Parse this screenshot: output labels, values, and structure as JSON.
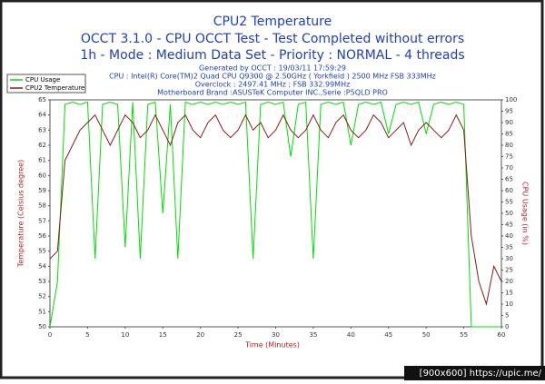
{
  "chart_data": {
    "type": "line",
    "title": "CPU2 Temperature",
    "subtitles": [
      "OCCT 3.1.0 - CPU OCCT Test - Test Completed without errors",
      "1h - Mode : Medium Data Set - Priority : NORMAL - 4 threads"
    ],
    "annotations": [
      "Generated by OCCT : 19/03/11 17:59:29",
      "CPU : Intel(R) Core(TM)2 Quad CPU Q9300 @ 2.50GHz ( Yorkfield ) 2500 MHz FSB 333MHz",
      "Overclock : 2497.41 MHz ; FSB 332.99MHz",
      "Motherboard Brand :ASUSTeK Computer INC.,Serie :P5QLD PRO"
    ],
    "watermark": "[900x600] https://upic.me/",
    "xlabel": "Time (Minutes)",
    "ylabel": "Temperature (Celsius degree)",
    "y2label": "CPU Usage (in %)",
    "xlim": [
      0,
      60
    ],
    "xticks": [
      0,
      5,
      10,
      15,
      20,
      25,
      30,
      35,
      40,
      45,
      50,
      55,
      60
    ],
    "ylim": [
      50,
      65
    ],
    "yticks": [
      50,
      51,
      52,
      53,
      54,
      55,
      56,
      57,
      58,
      59,
      60,
      61,
      62,
      63,
      64,
      65
    ],
    "y2lim": [
      0,
      100
    ],
    "y2ticks": [
      0,
      5,
      10,
      15,
      20,
      25,
      30,
      35,
      40,
      45,
      50,
      55,
      60,
      65,
      70,
      75,
      80,
      85,
      90,
      95,
      100
    ],
    "legend": "top-left",
    "grid": false,
    "x": [
      0,
      1,
      2,
      3,
      4,
      5,
      6,
      7,
      8,
      9,
      10,
      11,
      12,
      13,
      14,
      15,
      16,
      17,
      18,
      19,
      20,
      21,
      22,
      23,
      24,
      25,
      26,
      27,
      28,
      29,
      30,
      31,
      32,
      33,
      34,
      35,
      36,
      37,
      38,
      39,
      40,
      41,
      42,
      43,
      44,
      45,
      46,
      47,
      48,
      49,
      50,
      51,
      52,
      53,
      54,
      55,
      56,
      57,
      58,
      59,
      60
    ],
    "series": [
      {
        "name": "CPU Usage",
        "color": "#00e000",
        "axis": "y2",
        "values": [
          0,
          20,
          98,
          99,
          98,
          99,
          30,
          98,
          99,
          98,
          35,
          99,
          30,
          98,
          99,
          50,
          98,
          30,
          99,
          98,
          99,
          98,
          99,
          98,
          99,
          98,
          99,
          30,
          98,
          99,
          98,
          99,
          75,
          98,
          99,
          30,
          98,
          99,
          98,
          99,
          80,
          98,
          99,
          98,
          99,
          85,
          98,
          99,
          98,
          99,
          85,
          98,
          99,
          98,
          99,
          98,
          0,
          0,
          0,
          0,
          0
        ]
      },
      {
        "name": "CPU2 Temperature",
        "color": "#8b1a1a",
        "values": [
          54.5,
          55,
          61,
          62,
          63,
          63.5,
          64,
          63,
          62,
          63,
          64,
          63.5,
          62.5,
          63,
          64,
          63,
          62,
          63.5,
          64,
          63,
          62.5,
          63.5,
          64,
          63,
          62.5,
          63,
          64,
          63,
          63.5,
          62.5,
          63,
          64,
          63,
          62.5,
          63,
          64,
          63,
          62.5,
          63.5,
          64,
          63,
          62.5,
          63,
          64,
          63.5,
          62.5,
          63,
          63.5,
          62,
          63,
          63.5,
          63,
          62.5,
          63,
          64,
          63,
          56,
          53,
          51.5,
          54,
          53
        ]
      }
    ]
  }
}
